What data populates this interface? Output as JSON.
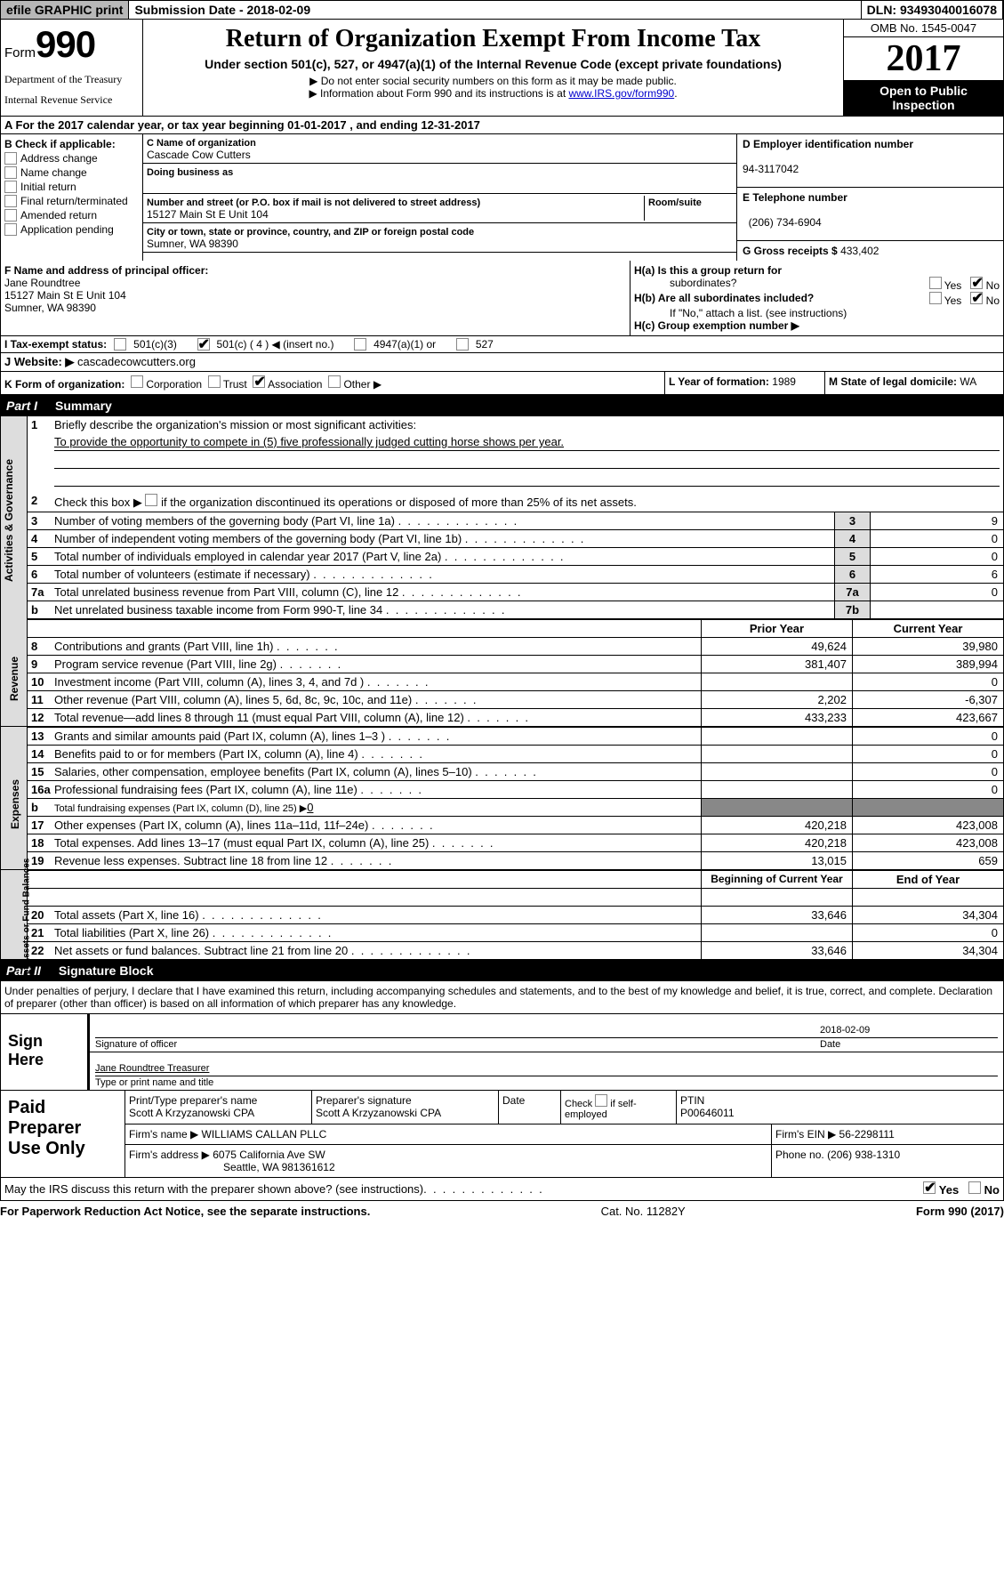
{
  "topbar": {
    "efile": "efile GRAPHIC print",
    "submission_label": "Submission Date -",
    "submission_date": "2018-02-09",
    "dln_label": "DLN:",
    "dln": "93493040016078"
  },
  "header": {
    "form_label": "Form",
    "form_num": "990",
    "dept1": "Department of the Treasury",
    "dept2": "Internal Revenue Service",
    "title": "Return of Organization Exempt From Income Tax",
    "subtitle": "Under section 501(c), 527, or 4947(a)(1) of the Internal Revenue Code (except private foundations)",
    "note1": "▶ Do not enter social security numbers on this form as it may be made public.",
    "note2": "▶ Information about Form 990 and its instructions is at ",
    "note2_link": "www.IRS.gov/form990",
    "omb": "OMB No. 1545-0047",
    "year": "2017",
    "open": "Open to Public Inspection"
  },
  "section_a": "A  For the 2017 calendar year, or tax year beginning 01-01-2017   , and ending 12-31-2017",
  "section_b": {
    "label": "B Check if applicable:",
    "items": [
      "Address change",
      "Name change",
      "Initial return",
      "Final return/terminated",
      "Amended return",
      "Application pending"
    ]
  },
  "section_c": {
    "name_label": "C Name of organization",
    "name": "Cascade Cow Cutters",
    "dba_label": "Doing business as",
    "street_label": "Number and street (or P.O. box if mail is not delivered to street address)",
    "room_label": "Room/suite",
    "street": "15127 Main St E Unit 104",
    "city_label": "City or town, state or province, country, and ZIP or foreign postal code",
    "city": "Sumner, WA  98390"
  },
  "section_d": {
    "ein_label": "D Employer identification number",
    "ein": "94-3117042",
    "phone_label": "E Telephone number",
    "phone": "(206) 734-6904",
    "receipts_label": "G Gross receipts $",
    "receipts": "433,402"
  },
  "section_f": {
    "label": "F  Name and address of principal officer:",
    "name": "Jane Roundtree",
    "addr1": "15127 Main St E Unit 104",
    "addr2": "Sumner, WA  98390"
  },
  "section_h": {
    "a": "H(a)  Is this a group return for",
    "a2": "subordinates?",
    "b": "H(b)  Are all subordinates included?",
    "b2": "If \"No,\" attach a list. (see instructions)",
    "c": "H(c)  Group exemption number ▶",
    "yes": "Yes",
    "no": "No"
  },
  "tax_status": {
    "label": "I  Tax-exempt status:",
    "opt1": "501(c)(3)",
    "opt2": "501(c) ( 4 ) ◀ (insert no.)",
    "opt3": "4947(a)(1) or",
    "opt4": "527"
  },
  "website": {
    "label": "J  Website: ▶",
    "url": "cascadecowcutters.org"
  },
  "section_k": {
    "label": "K Form of organization:",
    "opts": [
      "Corporation",
      "Trust",
      "Association",
      "Other ▶"
    ]
  },
  "section_l": {
    "label": "L Year of formation:",
    "val": "1989"
  },
  "section_m": {
    "label": "M State of legal domicile:",
    "val": "WA"
  },
  "part1": {
    "header_num": "Part I",
    "header_title": "Summary",
    "sidebar1": "Activities & Governance",
    "sidebar2": "Revenue",
    "sidebar3": "Expenses",
    "sidebar4": "Net Assets or Fund Balances",
    "line1": "Briefly describe the organization's mission or most significant activities:",
    "mission": "To provide the opportunity to compete in (5) five professionally judged cutting horse shows per year.",
    "line2": "Check this box ▶         if the organization discontinued its operations or disposed of more than 25% of its net assets.",
    "lines_gov": [
      {
        "n": "3",
        "desc": "Number of voting members of the governing body (Part VI, line 1a)",
        "box": "3",
        "val": "9"
      },
      {
        "n": "4",
        "desc": "Number of independent voting members of the governing body (Part VI, line 1b)",
        "box": "4",
        "val": "0"
      },
      {
        "n": "5",
        "desc": "Total number of individuals employed in calendar year 2017 (Part V, line 2a)",
        "box": "5",
        "val": "0"
      },
      {
        "n": "6",
        "desc": "Total number of volunteers (estimate if necessary)",
        "box": "6",
        "val": "6"
      },
      {
        "n": "7a",
        "desc": "Total unrelated business revenue from Part VIII, column (C), line 12",
        "box": "7a",
        "val": "0"
      },
      {
        "n": "b",
        "desc": "Net unrelated business taxable income from Form 990-T, line 34",
        "box": "7b",
        "val": ""
      }
    ],
    "col_prior": "Prior Year",
    "col_current": "Current Year",
    "rev_lines": [
      {
        "n": "8",
        "desc": "Contributions and grants (Part VIII, line 1h)",
        "prior": "49,624",
        "curr": "39,980"
      },
      {
        "n": "9",
        "desc": "Program service revenue (Part VIII, line 2g)",
        "prior": "381,407",
        "curr": "389,994"
      },
      {
        "n": "10",
        "desc": "Investment income (Part VIII, column (A), lines 3, 4, and 7d )",
        "prior": "",
        "curr": "0"
      },
      {
        "n": "11",
        "desc": "Other revenue (Part VIII, column (A), lines 5, 6d, 8c, 9c, 10c, and 11e)",
        "prior": "2,202",
        "curr": "-6,307"
      },
      {
        "n": "12",
        "desc": "Total revenue—add lines 8 through 11 (must equal Part VIII, column (A), line 12)",
        "prior": "433,233",
        "curr": "423,667"
      }
    ],
    "exp_lines": [
      {
        "n": "13",
        "desc": "Grants and similar amounts paid (Part IX, column (A), lines 1–3 )",
        "prior": "",
        "curr": "0"
      },
      {
        "n": "14",
        "desc": "Benefits paid to or for members (Part IX, column (A), line 4)",
        "prior": "",
        "curr": "0"
      },
      {
        "n": "15",
        "desc": "Salaries, other compensation, employee benefits (Part IX, column (A), lines 5–10)",
        "prior": "",
        "curr": "0"
      },
      {
        "n": "16a",
        "desc": "Professional fundraising fees (Part IX, column (A), line 11e)",
        "prior": "",
        "curr": "0"
      }
    ],
    "line16b": {
      "n": "b",
      "desc": "Total fundraising expenses (Part IX, column (D), line 25) ▶",
      "val": "0"
    },
    "exp_lines2": [
      {
        "n": "17",
        "desc": "Other expenses (Part IX, column (A), lines 11a–11d, 11f–24e)",
        "prior": "420,218",
        "curr": "423,008"
      },
      {
        "n": "18",
        "desc": "Total expenses. Add lines 13–17 (must equal Part IX, column (A), line 25)",
        "prior": "420,218",
        "curr": "423,008"
      },
      {
        "n": "19",
        "desc": "Revenue less expenses. Subtract line 18 from line 12",
        "prior": "13,015",
        "curr": "659"
      }
    ],
    "col_begin": "Beginning of Current Year",
    "col_end": "End of Year",
    "net_lines": [
      {
        "n": "20",
        "desc": "Total assets (Part X, line 16)",
        "prior": "33,646",
        "curr": "34,304"
      },
      {
        "n": "21",
        "desc": "Total liabilities (Part X, line 26)",
        "prior": "",
        "curr": "0"
      },
      {
        "n": "22",
        "desc": "Net assets or fund balances. Subtract line 21 from line 20",
        "prior": "33,646",
        "curr": "34,304"
      }
    ]
  },
  "part2": {
    "header_num": "Part II",
    "header_title": "Signature Block",
    "perjury": "Under penalties of perjury, I declare that I have examined this return, including accompanying schedules and statements, and to the best of my knowledge and belief, it is true, correct, and complete. Declaration of preparer (other than officer) is based on all information of which preparer has any knowledge.",
    "sign_here": "Sign Here",
    "sig_officer": "Signature of officer",
    "sig_date_label": "Date",
    "sig_date": "2018-02-09",
    "type_name": "Jane Roundtree Treasurer",
    "type_label": "Type or print name and title",
    "paid": "Paid Preparer Use Only",
    "prep_name_label": "Print/Type preparer's name",
    "prep_name": "Scott A Krzyzanowski CPA",
    "prep_sig_label": "Preparer's signature",
    "prep_sig": "Scott A Krzyzanowski CPA",
    "date_label": "Date",
    "check_label": "Check         if self-employed",
    "ptin_label": "PTIN",
    "ptin": "P00646011",
    "firm_name_label": "Firm's name    ▶",
    "firm_name": "WILLIAMS CALLAN PLLC",
    "firm_ein_label": "Firm's EIN ▶",
    "firm_ein": "56-2298111",
    "firm_addr_label": "Firm's address ▶",
    "firm_addr": "6075 California Ave SW",
    "firm_city": "Seattle, WA  981361612",
    "firm_phone_label": "Phone no.",
    "firm_phone": "(206) 938-1310",
    "discuss": "May the IRS discuss this return with the preparer shown above? (see instructions)",
    "yes": "Yes",
    "no": "No"
  },
  "footer": {
    "left": "For Paperwork Reduction Act Notice, see the separate instructions.",
    "mid": "Cat. No. 11282Y",
    "right": "Form 990 (2017)"
  }
}
